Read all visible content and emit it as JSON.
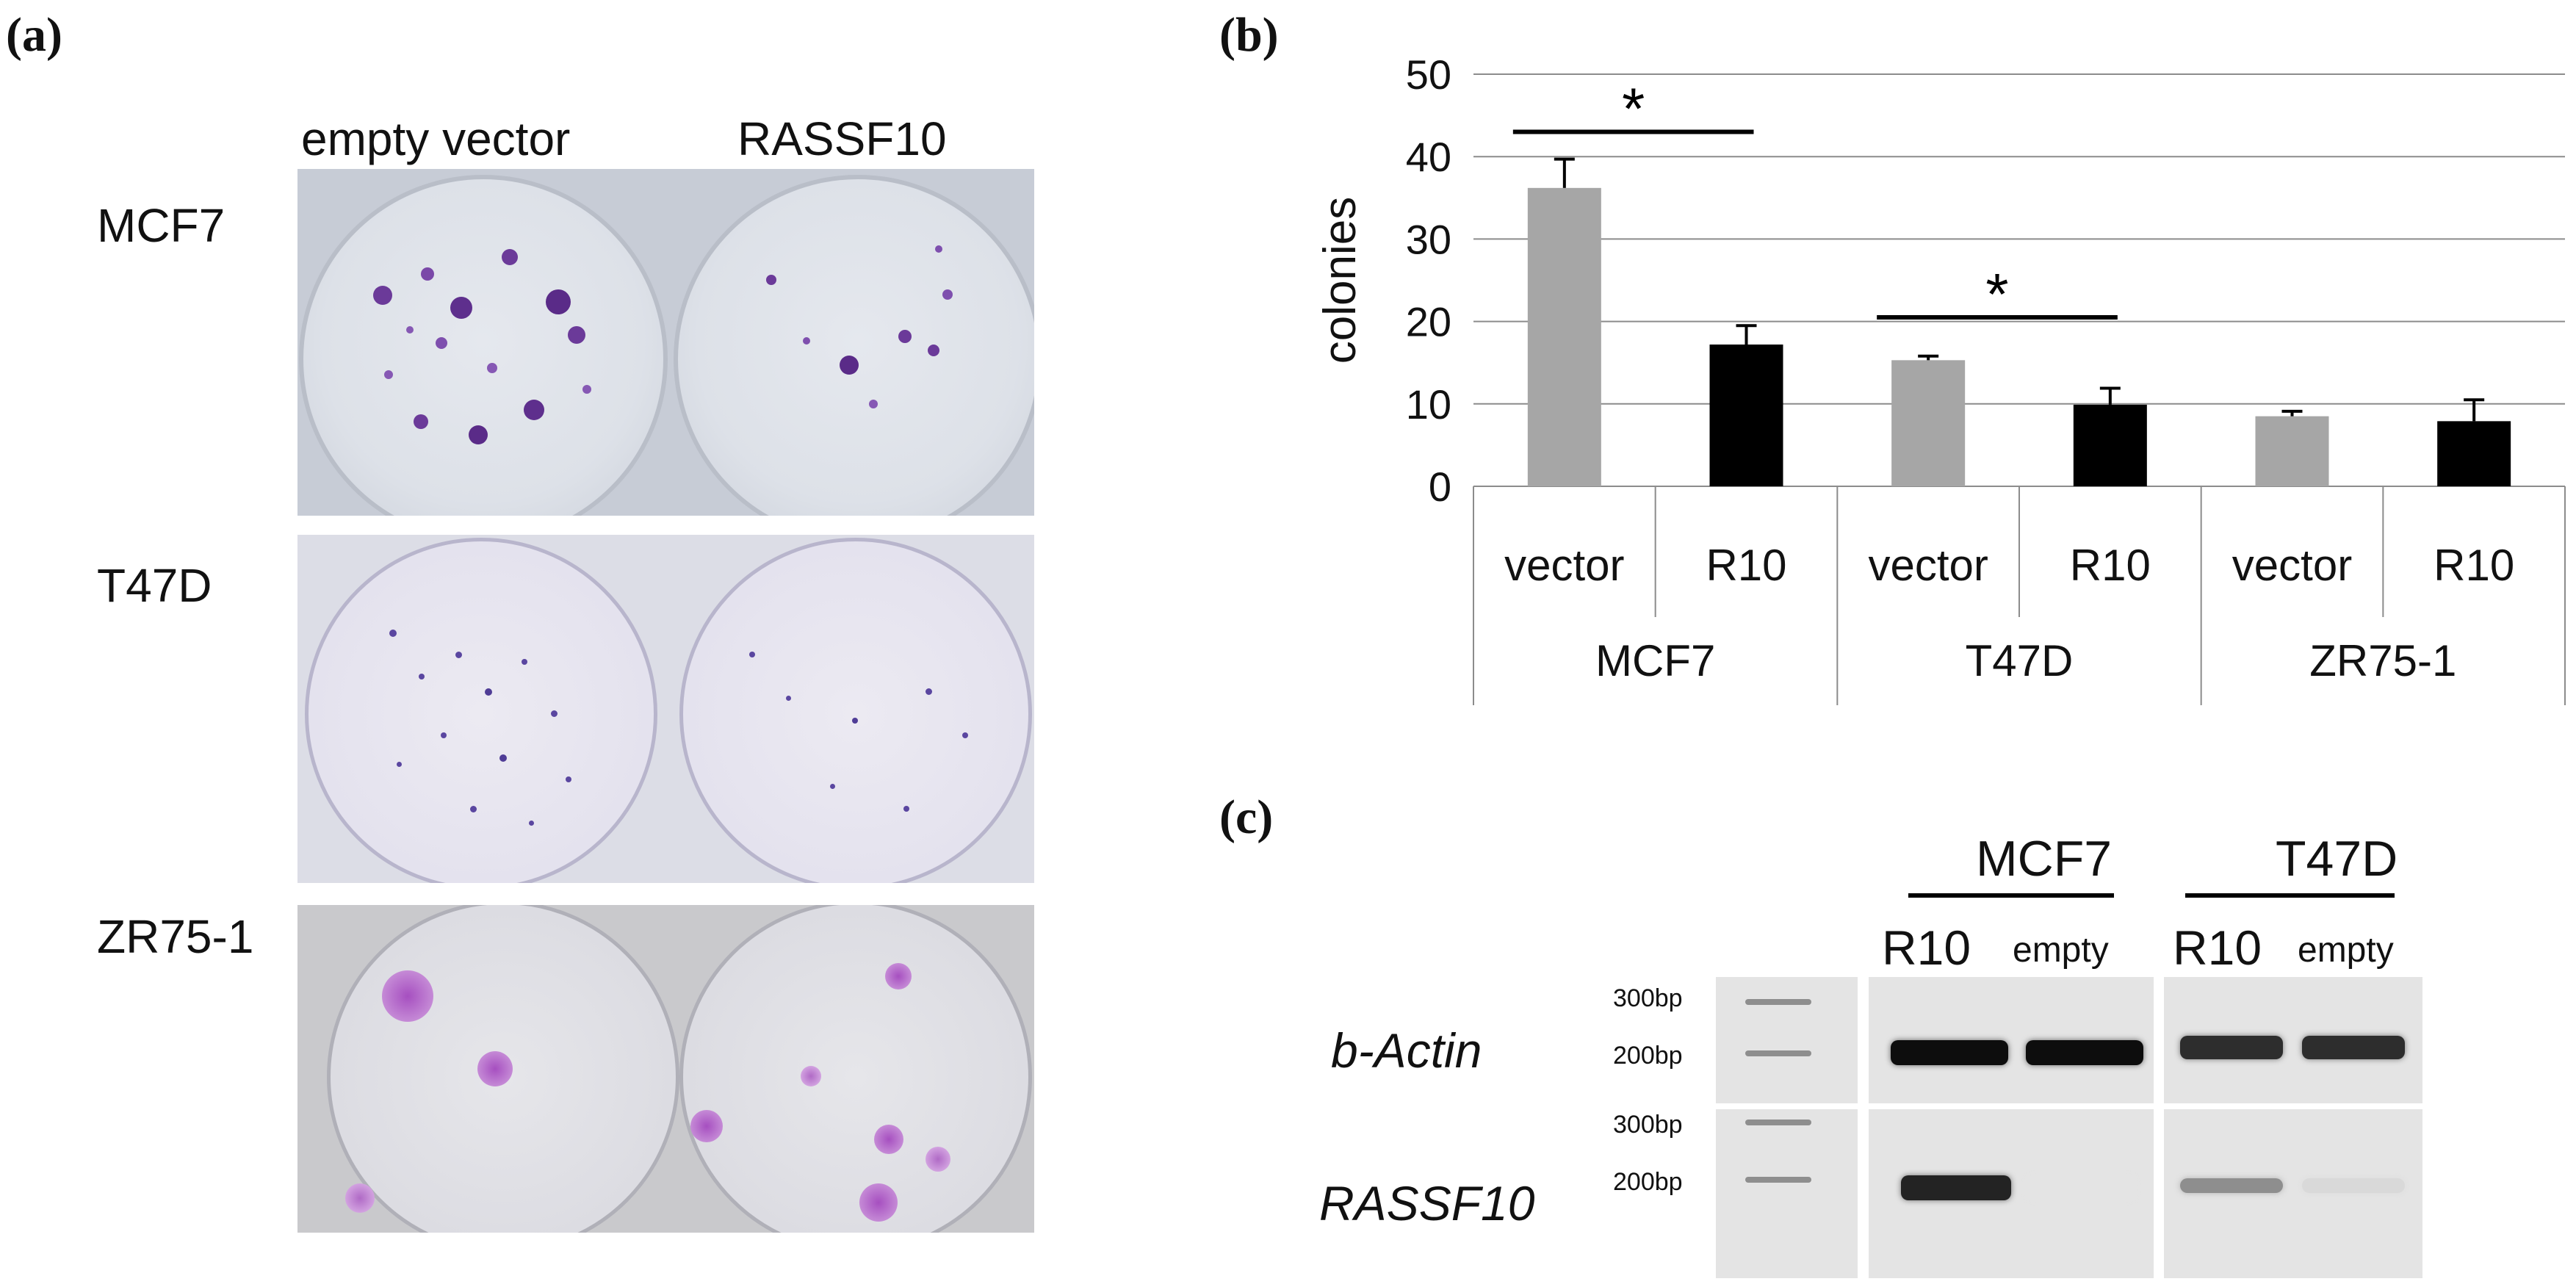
{
  "figure": {
    "panel_a": {
      "letter": "(a)",
      "columns": [
        "empty vector",
        "RASSF10"
      ],
      "rows": [
        "MCF7",
        "T47D",
        "ZR75-1"
      ]
    },
    "panel_b": {
      "letter": "(b)"
    },
    "panel_c": {
      "letter": "(c)",
      "groups": [
        "MCF7",
        "T47D"
      ],
      "lanes": [
        "R10",
        "empty",
        "R10",
        "empty"
      ],
      "genes": [
        "b-Actin",
        "RASSF10"
      ],
      "ladder": [
        "300bp",
        "200bp",
        "300bp",
        "200bp"
      ],
      "band_intensity": {
        "b-Actin": [
          1.0,
          1.0,
          0.85,
          0.85
        ],
        "RASSF10": [
          0.9,
          0.0,
          0.4,
          0.05
        ]
      }
    }
  },
  "chart_data": {
    "type": "bar",
    "ylabel": "colonies",
    "ylim": [
      0,
      50
    ],
    "yticks": [
      0,
      10,
      20,
      30,
      40,
      50
    ],
    "grid": true,
    "groups": [
      "MCF7",
      "T47D",
      "ZR75-1"
    ],
    "categories": [
      "vector",
      "R10",
      "vector",
      "R10",
      "vector",
      "R10"
    ],
    "values": [
      36.2,
      17.2,
      15.3,
      9.9,
      8.5,
      7.9
    ],
    "errors": [
      3.5,
      2.3,
      0.5,
      2.0,
      0.6,
      2.6
    ],
    "colors": [
      "#a6a6a6",
      "#000000",
      "#a6a6a6",
      "#000000",
      "#a6a6a6",
      "#000000"
    ],
    "significance": [
      {
        "from": 0,
        "to": 1,
        "y": 43,
        "label": "*"
      },
      {
        "from": 2,
        "to": 3,
        "y": 20.5,
        "label": "*"
      }
    ]
  }
}
